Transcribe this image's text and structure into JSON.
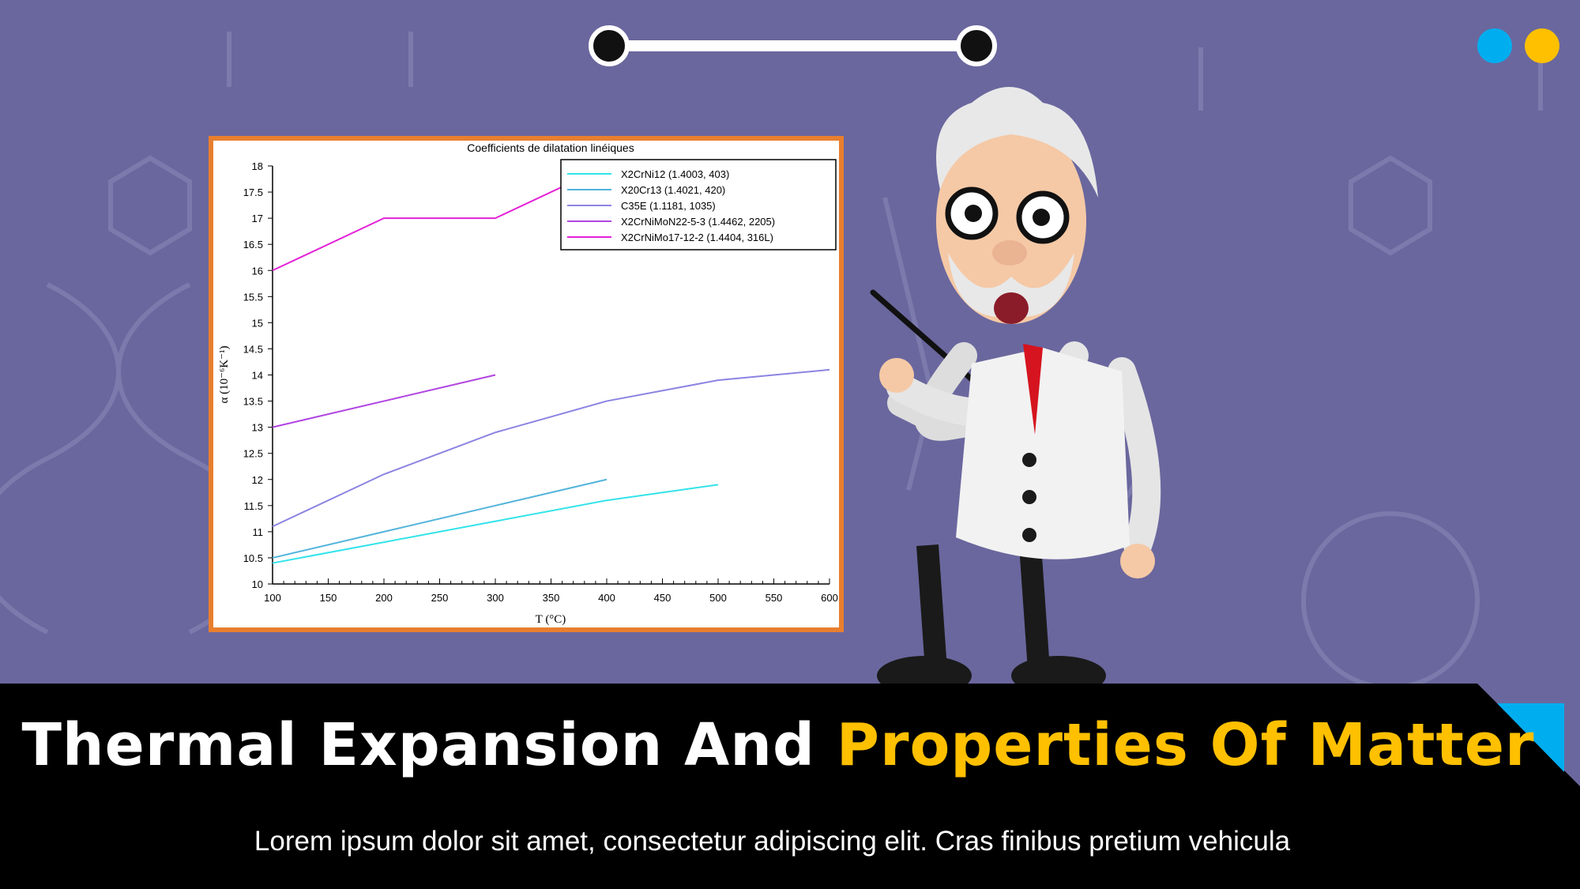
{
  "colors": {
    "background": "#6a679e",
    "frame": "#e87f2e",
    "band": "#000000",
    "accent_blue": "#00aeef",
    "accent_yellow": "#ffc000"
  },
  "slide": {
    "title_part1": "Thermal Expansion And ",
    "title_part2": "Properties Of Matter",
    "subtitle": "Lorem ipsum dolor sit amet, consectetur adipiscing elit. Cras finibus pretium vehicula"
  },
  "chart_data": {
    "type": "line",
    "title": "Coefficients de dilatation linéiques",
    "xlabel": "T (°C)",
    "ylabel": "α (10⁻⁶K⁻¹)",
    "xlim": [
      100,
      600
    ],
    "ylim": [
      10,
      18
    ],
    "xticks": [
      100,
      150,
      200,
      250,
      300,
      350,
      400,
      450,
      500,
      550,
      600
    ],
    "yticks": [
      10,
      10.5,
      11,
      11.5,
      12,
      12.5,
      13,
      13.5,
      14,
      14.5,
      15,
      15.5,
      16,
      16.5,
      17,
      17.5,
      18
    ],
    "grid": false,
    "legend_position": "top-right",
    "series": [
      {
        "name": "X2CrNi12 (1.4003, 403)",
        "color": "#33e3ea",
        "x": [
          100,
          200,
          300,
          400,
          500
        ],
        "y": [
          10.4,
          10.8,
          11.2,
          11.6,
          11.9
        ]
      },
      {
        "name": "X20Cr13 (1.4021, 420)",
        "color": "#52b4dc",
        "x": [
          100,
          200,
          300,
          400
        ],
        "y": [
          10.5,
          11,
          11.5,
          12
        ]
      },
      {
        "name": "C35E (1.1181, 1035)",
        "color": "#8b84e2",
        "x": [
          100,
          200,
          300,
          400,
          500,
          600
        ],
        "y": [
          11.1,
          12.1,
          12.9,
          13.5,
          13.9,
          14.1
        ]
      },
      {
        "name": "X2CrNiMoN22-5-3 (1.4462, 2205)",
        "color": "#b145e2",
        "x": [
          100,
          200,
          300
        ],
        "y": [
          13,
          13.5,
          14
        ]
      },
      {
        "name": "X2CrNiMo17-12-2 (1.4404, 316L)",
        "color": "#e322d8",
        "x": [
          100,
          200,
          300,
          400,
          500
        ],
        "y": [
          16,
          17,
          17,
          18,
          18
        ]
      }
    ]
  }
}
